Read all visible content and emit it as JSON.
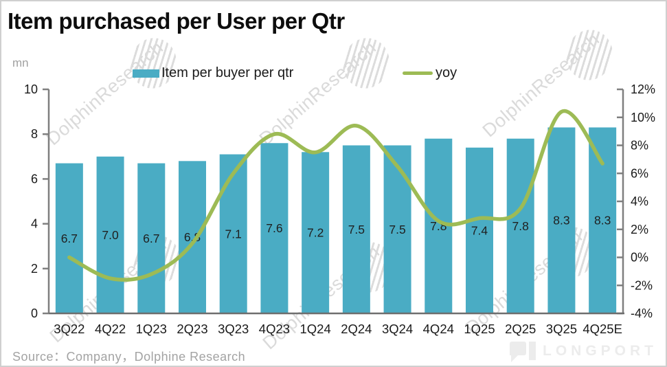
{
  "title": "Item purchased per User per Qtr",
  "unit_label": "mn",
  "legend": [
    {
      "label": "Item per buyer per qtr",
      "type": "bar",
      "color": "#4AACC4"
    },
    {
      "label": "yoy",
      "type": "line",
      "color": "#9DBB55"
    }
  ],
  "source": "Source：Company，Dolphine Research",
  "watermark": {
    "text": "DolphinResearch",
    "brand": "LONGPORT"
  },
  "colors": {
    "bar": "#4AACC4",
    "line": "#9DBB55",
    "axis": "#7f7f7f",
    "bottom_axis": "#6e6e6e",
    "tick_text": "#1a1a1a",
    "bar_label_text": "#1f1f1f",
    "watermark_gray": "#dadada",
    "brand_gray": "#ececec"
  },
  "chart_data": {
    "type": "bar",
    "subtype": "bar-with-line-overlay",
    "title": "Item purchased per User per Qtr",
    "categories": [
      "3Q22",
      "4Q22",
      "1Q23",
      "2Q23",
      "3Q23",
      "4Q23",
      "1Q24",
      "2Q24",
      "3Q24",
      "4Q24",
      "1Q25",
      "2Q25",
      "3Q25",
      "4Q25E"
    ],
    "series": [
      {
        "name": "Item per buyer per qtr",
        "type": "bar",
        "axis": "left",
        "unit": "mn",
        "color": "#4AACC4",
        "values": [
          6.7,
          7.0,
          6.7,
          6.8,
          7.1,
          7.6,
          7.2,
          7.5,
          7.5,
          7.8,
          7.4,
          7.8,
          8.3,
          8.3
        ],
        "data_labels": [
          "6.7",
          "7.0",
          "6.7",
          "6.8",
          "7.1",
          "7.6",
          "7.2",
          "7.5",
          "7.5",
          "7.8",
          "7.4",
          "7.8",
          "8.3",
          "8.3"
        ]
      },
      {
        "name": "yoy",
        "type": "line",
        "axis": "right",
        "unit": "%",
        "color": "#9DBB55",
        "smooth": true,
        "values": [
          0.0,
          -1.5,
          -1.2,
          1.0,
          6.0,
          8.8,
          7.5,
          9.4,
          6.5,
          2.6,
          2.8,
          3.5,
          10.4,
          6.7
        ]
      }
    ],
    "left_axis": {
      "label": "mn",
      "min": 0,
      "max": 10,
      "step": 2,
      "ticks": [
        "0",
        "2",
        "4",
        "6",
        "8",
        "10"
      ]
    },
    "right_axis": {
      "label": "",
      "min": -4,
      "max": 12,
      "step": 2,
      "ticks": [
        "-4%",
        "-2%",
        "0%",
        "2%",
        "4%",
        "6%",
        "8%",
        "10%",
        "12%"
      ]
    },
    "grid": false,
    "legend_position": "top",
    "xlabel": "",
    "ylabel": "mn"
  }
}
